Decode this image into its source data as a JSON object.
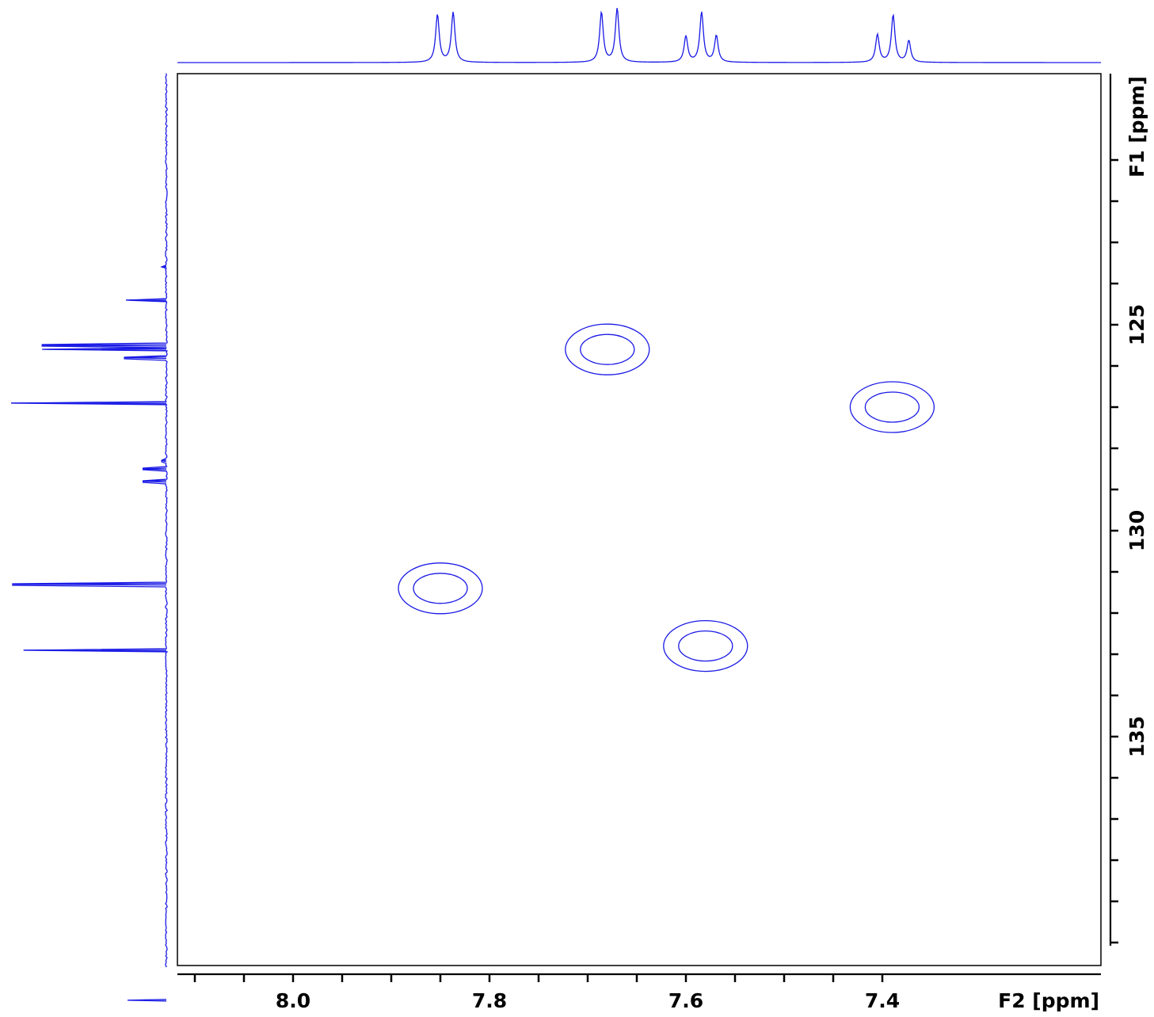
{
  "chart_data": {
    "type": "contour",
    "subtype": "2D NMR HSQC",
    "line_color": "#1a1ae6",
    "xlabel": "F2 [ppm]",
    "ylabel": "F1 [ppm]",
    "xlim": [
      8.1,
      7.38
    ],
    "ylim": [
      120.5,
      146.7
    ],
    "x_ticks_major": [
      8.0,
      7.8,
      7.6,
      7.4
    ],
    "x_tick_labels": [
      "8.0",
      "7.8",
      "7.6",
      "7.4"
    ],
    "y_ticks_major": [
      125,
      130,
      135
    ],
    "y_tick_labels": [
      "125",
      "130",
      "135"
    ],
    "cross_peaks": [
      {
        "f2": 7.68,
        "f1": 125.6
      },
      {
        "f2": 7.39,
        "f1": 127.0
      },
      {
        "f2": 7.85,
        "f1": 131.4
      },
      {
        "f2": 7.58,
        "f1": 132.8
      }
    ],
    "f2_projection_multiplets": [
      {
        "center": 7.845,
        "lines": [
          7.853,
          7.837
        ],
        "heights": [
          0.86,
          0.9
        ]
      },
      {
        "center": 7.678,
        "lines": [
          7.686,
          7.67
        ],
        "heights": [
          0.9,
          0.97
        ]
      },
      {
        "center": 7.584,
        "lines": [
          7.6,
          7.584,
          7.569
        ],
        "heights": [
          0.47,
          0.9,
          0.48
        ]
      },
      {
        "center": 7.389,
        "lines": [
          7.405,
          7.389,
          7.373
        ],
        "heights": [
          0.5,
          0.85,
          0.39
        ]
      }
    ],
    "f1_projection_peaks": [
      {
        "ppm": 123.6,
        "height": 0.03
      },
      {
        "ppm": 124.4,
        "height": 0.26
      },
      {
        "ppm": 125.5,
        "height": 0.8
      },
      {
        "ppm": 125.6,
        "height": 0.8
      },
      {
        "ppm": 125.8,
        "height": 0.27
      },
      {
        "ppm": 126.9,
        "height": 1.0
      },
      {
        "ppm": 128.3,
        "height": 0.03
      },
      {
        "ppm": 128.5,
        "height": 0.15
      },
      {
        "ppm": 128.8,
        "height": 0.15
      },
      {
        "ppm": 131.3,
        "height": 0.99
      },
      {
        "ppm": 132.9,
        "height": 0.92
      },
      {
        "ppm": 141.4,
        "height": 0.25
      }
    ]
  }
}
